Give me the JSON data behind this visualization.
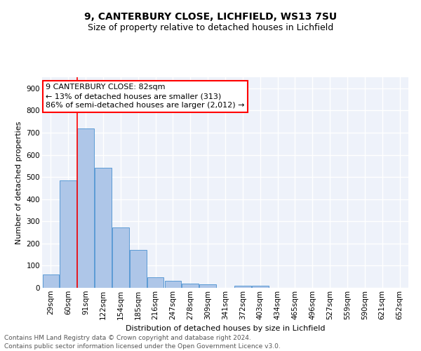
{
  "title1": "9, CANTERBURY CLOSE, LICHFIELD, WS13 7SU",
  "title2": "Size of property relative to detached houses in Lichfield",
  "xlabel": "Distribution of detached houses by size in Lichfield",
  "ylabel": "Number of detached properties",
  "footer1": "Contains HM Land Registry data © Crown copyright and database right 2024.",
  "footer2": "Contains public sector information licensed under the Open Government Licence v3.0.",
  "categories": [
    "29sqm",
    "60sqm",
    "91sqm",
    "122sqm",
    "154sqm",
    "185sqm",
    "216sqm",
    "247sqm",
    "278sqm",
    "309sqm",
    "341sqm",
    "372sqm",
    "403sqm",
    "434sqm",
    "465sqm",
    "496sqm",
    "527sqm",
    "559sqm",
    "590sqm",
    "621sqm",
    "652sqm"
  ],
  "values": [
    60,
    484,
    718,
    543,
    272,
    170,
    46,
    32,
    20,
    15,
    0,
    8,
    8,
    0,
    0,
    0,
    0,
    0,
    0,
    0,
    0
  ],
  "bar_color": "#aec6e8",
  "bar_edge_color": "#5b9bd5",
  "vline_color": "red",
  "annotation_line1": "9 CANTERBURY CLOSE: 82sqm",
  "annotation_line2": "← 13% of detached houses are smaller (313)",
  "annotation_line3": "86% of semi-detached houses are larger (2,012) →",
  "annotation_box_color": "white",
  "annotation_box_edge_color": "red",
  "ylim": [
    0,
    950
  ],
  "yticks": [
    0,
    100,
    200,
    300,
    400,
    500,
    600,
    700,
    800,
    900
  ],
  "bg_color": "#eef2fa",
  "grid_color": "white",
  "title_fontsize": 10,
  "subtitle_fontsize": 9,
  "axis_fontsize": 8,
  "tick_fontsize": 7.5,
  "footer_fontsize": 6.5,
  "annotation_fontsize": 8
}
